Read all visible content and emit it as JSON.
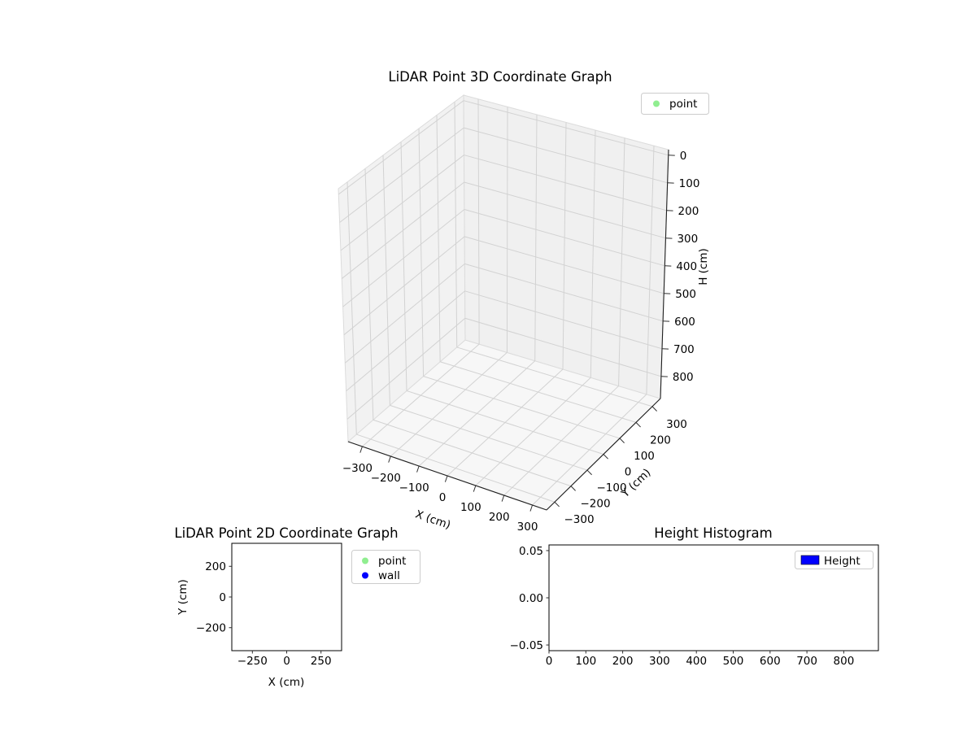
{
  "figure": {
    "background": "#ffffff",
    "text_color": "#000000",
    "grid_color": "#d2d2d2",
    "pane_color": "#f2f2f2",
    "axis_color": "#1f1f1f"
  },
  "chart_data": [
    {
      "id": "lidar-3d",
      "type": "scatter3d",
      "title": "LiDAR Point 3D Coordinate Graph",
      "xlabel": "X (cm)",
      "ylabel": "Y (cm)",
      "zlabel": "H (cm)",
      "xlim": [
        -350,
        350
      ],
      "ylim": [
        -350,
        350
      ],
      "zlim": [
        -20,
        880
      ],
      "z_axis_inverted": true,
      "grid": true,
      "xticks": [
        -300,
        -200,
        -100,
        0,
        100,
        200,
        300
      ],
      "yticks": [
        -300,
        -200,
        -100,
        0,
        100,
        200,
        300
      ],
      "zticks": [
        0,
        100,
        200,
        300,
        400,
        500,
        600,
        700,
        800
      ],
      "legend": {
        "position": "upper right",
        "entries": [
          {
            "label": "point",
            "marker": "circle",
            "color": "#90ee90"
          }
        ]
      },
      "series": [
        {
          "name": "point",
          "points": []
        }
      ]
    },
    {
      "id": "lidar-2d",
      "type": "scatter",
      "title": "LiDAR Point 2D Coordinate Graph",
      "xlabel": "X (cm)",
      "ylabel": "Y (cm)",
      "xlim": [
        -400,
        400
      ],
      "ylim": [
        -350,
        350
      ],
      "grid": false,
      "xticks": [
        -250,
        0,
        250
      ],
      "yticks": [
        200,
        0,
        -200
      ],
      "legend": {
        "position": "outside upper right",
        "entries": [
          {
            "label": "point",
            "marker": "circle",
            "color": "#90ee90"
          },
          {
            "label": "wall",
            "marker": "circle",
            "color": "#0000ff"
          }
        ]
      },
      "series": [
        {
          "name": "point",
          "points": []
        },
        {
          "name": "wall",
          "points": []
        }
      ]
    },
    {
      "id": "height-histogram",
      "type": "bar",
      "title": "Height Histogram",
      "xlabel": "",
      "ylabel": "",
      "xlim": [
        0,
        894
      ],
      "ylim": [
        -0.056,
        0.056
      ],
      "grid": false,
      "xticks": [
        0,
        100,
        200,
        300,
        400,
        500,
        600,
        700,
        800
      ],
      "yticks": [
        0.05,
        0.0,
        -0.05
      ],
      "ytick_labels": [
        "0.05",
        "0.00",
        "−0.05"
      ],
      "legend": {
        "position": "upper right",
        "entries": [
          {
            "label": "Height",
            "marker": "rect",
            "color": "#0000ff"
          }
        ]
      },
      "values": []
    }
  ]
}
